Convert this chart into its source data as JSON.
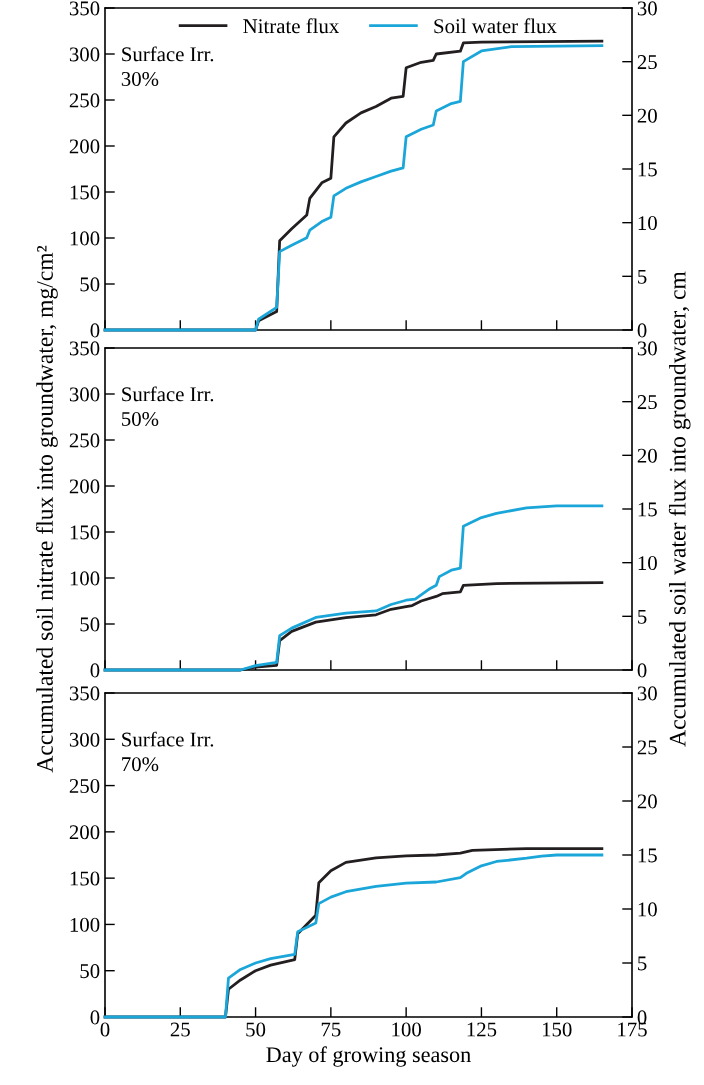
{
  "chart_data": [
    {
      "type": "line",
      "annotations": [
        "Surface Irr.\n30%"
      ],
      "xlim": [
        0,
        175
      ],
      "xticks": [
        0,
        25,
        50,
        75,
        100,
        125,
        150,
        175
      ],
      "ylim": [
        0,
        350
      ],
      "yticks": [
        0,
        50,
        100,
        150,
        200,
        250,
        300,
        350
      ],
      "y2lim": [
        0,
        30
      ],
      "y2ticks": [
        0,
        5,
        10,
        15,
        20,
        25,
        30
      ],
      "tick_labels": "y",
      "legend": "top",
      "grid": false,
      "series": [
        {
          "name": "Nitrate flux",
          "color": "#231f20",
          "x": [
            0,
            50,
            51,
            57,
            58,
            62,
            67,
            68,
            72,
            75,
            76,
            80,
            85,
            90,
            95,
            99,
            100,
            105,
            109,
            110,
            118,
            119,
            125,
            165
          ],
          "values": [
            0,
            0,
            10,
            20,
            97,
            110,
            125,
            143,
            160,
            165,
            210,
            225,
            236,
            243,
            252,
            254,
            285,
            291,
            293,
            300,
            303,
            312,
            313,
            314
          ]
        },
        {
          "name": "Soil water flux",
          "color": "#1ba6d9",
          "axis": "y2",
          "x": [
            0,
            50,
            51,
            57,
            58,
            62,
            67,
            68,
            72,
            75,
            76,
            80,
            85,
            90,
            95,
            99,
            100,
            105,
            109,
            110,
            115,
            118,
            119,
            125,
            135,
            165
          ],
          "values": [
            0,
            0,
            1,
            2.1,
            7.3,
            7.9,
            8.6,
            9.3,
            10.1,
            10.5,
            12.5,
            13.2,
            13.8,
            14.3,
            14.8,
            15.1,
            18.0,
            18.7,
            19.1,
            20.4,
            21.1,
            21.3,
            25.0,
            26.0,
            26.4,
            26.5
          ]
        }
      ]
    },
    {
      "type": "line",
      "annotations": [
        "Surface Irr.\n50%"
      ],
      "ylabel": "Accumulated soil nitrate flux into groundwater, mg/cm²",
      "y2label": "Accumulated soil water flux into groundwater, cm",
      "xlim": [
        0,
        175
      ],
      "xticks": [
        0,
        25,
        50,
        75,
        100,
        125,
        150,
        175
      ],
      "ylim": [
        0,
        350
      ],
      "yticks": [
        0,
        50,
        100,
        150,
        200,
        250,
        300,
        350
      ],
      "y2lim": [
        0,
        30
      ],
      "y2ticks": [
        0,
        5,
        10,
        15,
        20,
        25,
        30
      ],
      "tick_labels": "y",
      "grid": false,
      "series": [
        {
          "color": "#231f20",
          "x": [
            0,
            45,
            50,
            57,
            58,
            62,
            70,
            80,
            90,
            95,
            100,
            102,
            105,
            110,
            112,
            118,
            119,
            130,
            165
          ],
          "values": [
            0,
            0,
            3,
            5,
            32,
            42,
            52,
            57,
            60,
            66,
            69,
            70,
            75,
            80,
            83,
            85,
            92,
            94,
            95
          ]
        },
        {
          "color": "#1ba6d9",
          "axis": "y2",
          "x": [
            0,
            45,
            50,
            57,
            58,
            62,
            70,
            80,
            90,
            95,
            100,
            103,
            108,
            110,
            111,
            115,
            118,
            119,
            125,
            130,
            140,
            150,
            165
          ],
          "values": [
            0,
            0,
            0.4,
            0.7,
            3.2,
            3.9,
            4.9,
            5.3,
            5.5,
            6.1,
            6.5,
            6.6,
            7.6,
            7.9,
            8.7,
            9.3,
            9.5,
            13.4,
            14.2,
            14.6,
            15.1,
            15.3,
            15.3
          ]
        }
      ]
    },
    {
      "type": "line",
      "annotations": [
        "Surface Irr.\n70%"
      ],
      "xlabel": "Day of growing season",
      "xlim": [
        0,
        175
      ],
      "xticks": [
        0,
        25,
        50,
        75,
        100,
        125,
        150,
        175
      ],
      "ylim": [
        0,
        350
      ],
      "yticks": [
        0,
        50,
        100,
        150,
        200,
        250,
        300,
        350
      ],
      "y2lim": [
        0,
        30
      ],
      "y2ticks": [
        0,
        5,
        10,
        15,
        20,
        25,
        30
      ],
      "grid": false,
      "series": [
        {
          "color": "#231f20",
          "x": [
            0,
            40,
            41,
            45,
            50,
            55,
            63,
            64,
            67,
            70,
            71,
            75,
            80,
            90,
            100,
            110,
            118,
            122,
            140,
            165
          ],
          "values": [
            0,
            0,
            30,
            40,
            50,
            56,
            62,
            90,
            100,
            110,
            145,
            158,
            167,
            172,
            174,
            175,
            177,
            180,
            182,
            182
          ]
        },
        {
          "color": "#1ba6d9",
          "axis": "y2",
          "x": [
            0,
            40,
            41,
            45,
            50,
            55,
            63,
            64,
            70,
            71,
            75,
            80,
            90,
            100,
            110,
            118,
            120,
            125,
            130,
            140,
            145,
            150,
            165
          ],
          "values": [
            0,
            0,
            3.6,
            4.4,
            5.0,
            5.4,
            5.8,
            7.9,
            8.7,
            10.5,
            11.1,
            11.6,
            12.1,
            12.4,
            12.5,
            12.9,
            13.3,
            14.0,
            14.4,
            14.7,
            14.9,
            15.0,
            15.0
          ]
        }
      ]
    }
  ]
}
